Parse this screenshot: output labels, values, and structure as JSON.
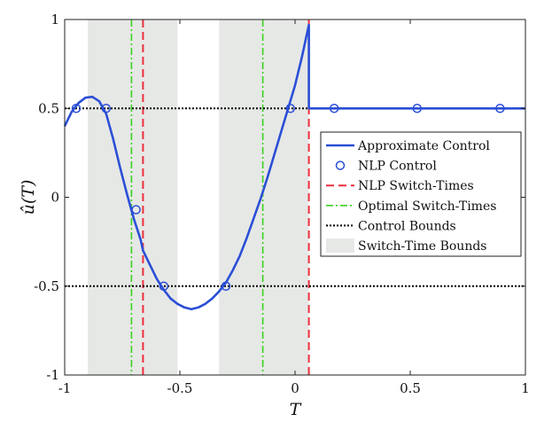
{
  "chart_data": {
    "type": "line",
    "xlabel": "T",
    "ylabel": "û(T)",
    "xlim": [
      -1,
      1
    ],
    "ylim": [
      -1,
      1
    ],
    "xticks": [
      -1,
      -0.5,
      0,
      0.5,
      1
    ],
    "xtick_labels": [
      "-1",
      "-0.5",
      "0",
      "0.5",
      "1"
    ],
    "yticks": [
      -1,
      -0.5,
      0,
      0.5,
      1
    ],
    "ytick_labels": [
      "-1",
      "-0.5",
      "0",
      "0.5",
      "1"
    ],
    "grid": false,
    "legend_position": "right",
    "shaded_regions": {
      "name": "Switch-Time Bounds",
      "color": "#e6e8e6",
      "ranges": [
        [
          -0.9,
          -0.51
        ],
        [
          -0.33,
          0.06
        ]
      ]
    },
    "series": [
      {
        "name": "Approximate Control",
        "style": "solid",
        "color": "#2b4fd6",
        "x": [
          -1,
          -0.97,
          -0.94,
          -0.91,
          -0.88,
          -0.85,
          -0.82,
          -0.79,
          -0.76,
          -0.73,
          -0.7,
          -0.67,
          -0.66,
          -0.63,
          -0.6,
          -0.57,
          -0.54,
          -0.51,
          -0.48,
          -0.45,
          -0.42,
          -0.39,
          -0.36,
          -0.33,
          -0.3,
          -0.27,
          -0.24,
          -0.21,
          -0.18,
          -0.15,
          -0.12,
          -0.09,
          -0.06,
          -0.03,
          0,
          0.03,
          0.06,
          0.06,
          0.2,
          0.4,
          0.6,
          0.8,
          1.0
        ],
        "y": [
          0.4,
          0.48,
          0.53,
          0.56,
          0.565,
          0.54,
          0.47,
          0.33,
          0.17,
          0.02,
          -0.12,
          -0.24,
          -0.3,
          -0.38,
          -0.46,
          -0.52,
          -0.57,
          -0.6,
          -0.62,
          -0.63,
          -0.62,
          -0.6,
          -0.57,
          -0.53,
          -0.48,
          -0.41,
          -0.33,
          -0.23,
          -0.12,
          -0.01,
          0.11,
          0.24,
          0.37,
          0.5,
          0.63,
          0.79,
          0.97,
          0.5,
          0.5,
          0.5,
          0.5,
          0.5,
          0.5
        ]
      },
      {
        "name": "NLP Control",
        "style": "markers",
        "color": "#2b4fd6",
        "x": [
          -0.95,
          -0.82,
          -0.69,
          -0.57,
          -0.3,
          -0.02,
          0.17,
          0.53,
          0.89
        ],
        "y": [
          0.5,
          0.5,
          -0.07,
          -0.5,
          -0.5,
          0.5,
          0.5,
          0.5,
          0.5
        ]
      },
      {
        "name": "NLP Switch-Times",
        "style": "dashed",
        "color": "#ee2f3c",
        "vlines": [
          -0.66,
          0.06
        ]
      },
      {
        "name": "Optimal Switch-Times",
        "style": "dashdot",
        "color": "#3ad11f",
        "vlines": [
          -0.71,
          -0.14
        ]
      },
      {
        "name": "Control Bounds",
        "style": "dotted",
        "color": "#000000",
        "hlines": [
          0.5,
          -0.5
        ]
      }
    ]
  }
}
